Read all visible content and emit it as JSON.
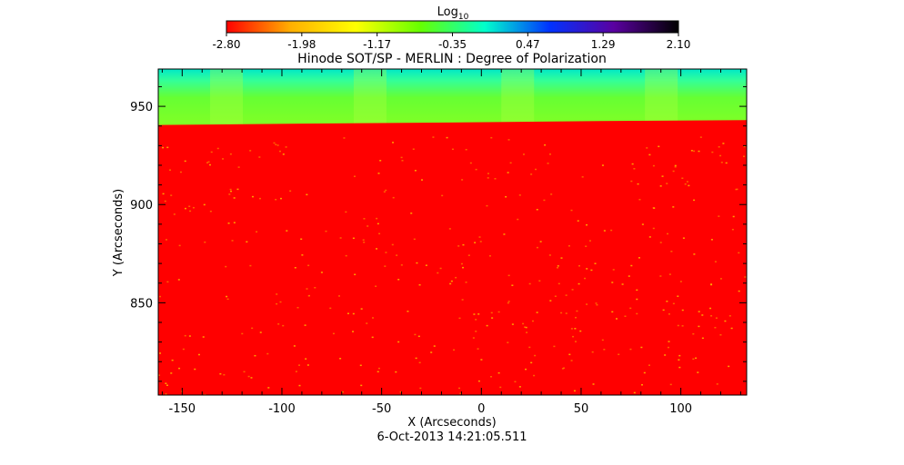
{
  "chart_data": {
    "type": "heatmap",
    "title": "Hinode SOT/SP - MERLIN : Degree of Polarization",
    "xlabel": "X (Arcseconds)",
    "ylabel": "Y (Arcseconds)",
    "timestamp": "6-Oct-2013 14:21:05.511",
    "colorbar": {
      "label_base": "Log",
      "label_sub": "10",
      "ticks": [
        "-2.80",
        "-1.98",
        "-1.17",
        "-0.35",
        "0.47",
        "1.29",
        "2.10"
      ],
      "range": [
        -2.8,
        2.1
      ],
      "colors": [
        "#ff0000",
        "#ffb000",
        "#ffff00",
        "#66ff00",
        "#00ffcc",
        "#0033ff",
        "#5a00a0",
        "#000000"
      ]
    },
    "xlim": [
      -162,
      133
    ],
    "ylim": [
      803,
      969
    ],
    "x_ticks": [
      "-150",
      "-100",
      "-50",
      "0",
      "50",
      "100"
    ],
    "x_tick_values": [
      -150,
      -100,
      -50,
      0,
      50,
      100
    ],
    "y_ticks": [
      "850",
      "900",
      "950"
    ],
    "y_tick_values": [
      850,
      900,
      950
    ],
    "limb_boundary": [
      {
        "x": -162,
        "y": 940.5
      },
      {
        "x": -90,
        "y": 941.2
      },
      {
        "x": -15,
        "y": 941.8
      },
      {
        "x": 60,
        "y": 942.5
      },
      {
        "x": 133,
        "y": 943.0
      }
    ],
    "regions": [
      {
        "name": "disk",
        "y_range": [
          803,
          941
        ],
        "log_value": -2.8,
        "color": "#ff0000"
      },
      {
        "name": "off-limb",
        "y_range": [
          941,
          969
        ],
        "log_value": -1.0,
        "color": "#66ff33"
      }
    ],
    "slit_scan_bands_x": [
      -136,
      -64,
      10,
      82
    ]
  }
}
